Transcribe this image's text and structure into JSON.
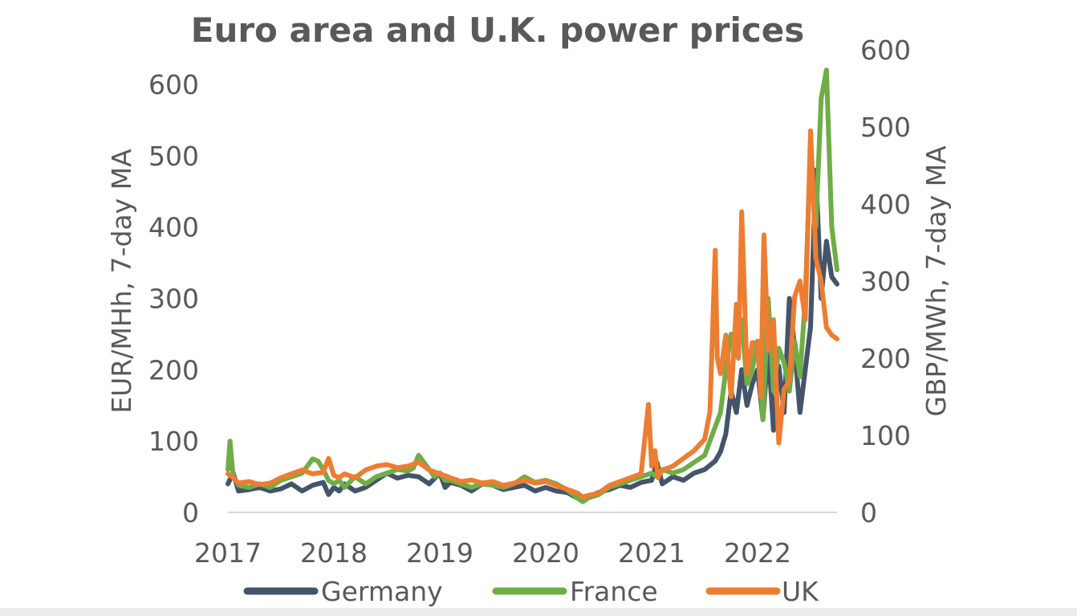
{
  "chart_data": {
    "type": "line",
    "title": "Euro area and U.K. power prices",
    "ylabel_left": "EUR/MHh, 7-day MA",
    "ylabel_right": "GBP/MWh, 7-day MA",
    "ylim_left": [
      0,
      600
    ],
    "ylim_right": [
      0,
      600
    ],
    "yticks_left": [
      "0",
      "100",
      "200",
      "300",
      "400",
      "500",
      "600"
    ],
    "yticks_right": [
      "0",
      "100",
      "200",
      "300",
      "400",
      "500",
      "600"
    ],
    "xlim": [
      2017.0,
      2022.75
    ],
    "xticks": [
      "2017",
      "2018",
      "2019",
      "2020",
      "2021",
      "2022"
    ],
    "grid": false,
    "legend_position": "bottom",
    "series": [
      {
        "name": "Germany",
        "color": "#44546a",
        "axis": "left",
        "x": [
          2017.0,
          2017.05,
          2017.1,
          2017.2,
          2017.3,
          2017.4,
          2017.5,
          2017.6,
          2017.7,
          2017.8,
          2017.9,
          2017.95,
          2018.0,
          2018.05,
          2018.1,
          2018.2,
          2018.3,
          2018.4,
          2018.5,
          2018.6,
          2018.7,
          2018.8,
          2018.9,
          2019.0,
          2019.05,
          2019.1,
          2019.2,
          2019.3,
          2019.4,
          2019.5,
          2019.6,
          2019.7,
          2019.8,
          2019.9,
          2020.0,
          2020.1,
          2020.2,
          2020.3,
          2020.35,
          2020.4,
          2020.5,
          2020.6,
          2020.7,
          2020.8,
          2020.9,
          2021.0,
          2021.05,
          2021.1,
          2021.2,
          2021.3,
          2021.4,
          2021.5,
          2021.6,
          2021.65,
          2021.7,
          2021.75,
          2021.8,
          2021.85,
          2021.9,
          2021.95,
          2022.0,
          2022.05,
          2022.1,
          2022.15,
          2022.2,
          2022.25,
          2022.3,
          2022.35,
          2022.4,
          2022.45,
          2022.5,
          2022.55,
          2022.6,
          2022.65,
          2022.7,
          2022.75
        ],
        "y": [
          40,
          55,
          30,
          32,
          35,
          30,
          33,
          40,
          30,
          38,
          42,
          25,
          35,
          30,
          40,
          30,
          35,
          45,
          55,
          48,
          52,
          50,
          40,
          55,
          35,
          42,
          38,
          30,
          40,
          38,
          32,
          35,
          38,
          30,
          35,
          30,
          28,
          20,
          18,
          22,
          28,
          32,
          38,
          35,
          42,
          45,
          70,
          40,
          50,
          45,
          55,
          60,
          72,
          85,
          110,
          170,
          140,
          200,
          150,
          180,
          200,
          130,
          230,
          115,
          205,
          140,
          300,
          230,
          140,
          200,
          260,
          480,
          300,
          380,
          330,
          320
        ]
      },
      {
        "name": "France",
        "color": "#70ad47",
        "axis": "left",
        "x": [
          2017.0,
          2017.02,
          2017.05,
          2017.1,
          2017.2,
          2017.3,
          2017.4,
          2017.5,
          2017.6,
          2017.7,
          2017.8,
          2017.85,
          2017.9,
          2017.95,
          2018.0,
          2018.05,
          2018.1,
          2018.2,
          2018.3,
          2018.4,
          2018.5,
          2018.6,
          2018.7,
          2018.75,
          2018.8,
          2018.85,
          2018.9,
          2018.95,
          2019.0,
          2019.05,
          2019.1,
          2019.2,
          2019.3,
          2019.4,
          2019.5,
          2019.6,
          2019.7,
          2019.8,
          2019.9,
          2020.0,
          2020.1,
          2020.2,
          2020.3,
          2020.35,
          2020.4,
          2020.5,
          2020.6,
          2020.7,
          2020.8,
          2020.9,
          2021.0,
          2021.05,
          2021.1,
          2021.2,
          2021.3,
          2021.4,
          2021.5,
          2021.6,
          2021.65,
          2021.7,
          2021.75,
          2021.8,
          2021.85,
          2021.9,
          2021.95,
          2022.0,
          2022.05,
          2022.1,
          2022.15,
          2022.2,
          2022.25,
          2022.3,
          2022.35,
          2022.4,
          2022.45,
          2022.5,
          2022.55,
          2022.6,
          2022.65,
          2022.7,
          2022.75
        ],
        "y": [
          60,
          100,
          50,
          38,
          35,
          40,
          35,
          45,
          50,
          55,
          75,
          72,
          60,
          45,
          40,
          45,
          35,
          50,
          40,
          50,
          55,
          60,
          58,
          62,
          80,
          70,
          60,
          50,
          55,
          45,
          45,
          40,
          35,
          40,
          38,
          35,
          40,
          50,
          42,
          45,
          40,
          32,
          20,
          15,
          20,
          25,
          35,
          40,
          45,
          50,
          55,
          50,
          60,
          55,
          60,
          70,
          80,
          120,
          140,
          200,
          250,
          220,
          270,
          180,
          200,
          240,
          130,
          300,
          170,
          230,
          210,
          170,
          240,
          190,
          300,
          510,
          400,
          580,
          620,
          400,
          340
        ]
      },
      {
        "name": "UK",
        "color": "#ed7d31",
        "axis": "right",
        "x": [
          2017.0,
          2017.05,
          2017.1,
          2017.2,
          2017.3,
          2017.4,
          2017.5,
          2017.6,
          2017.7,
          2017.8,
          2017.9,
          2017.95,
          2018.0,
          2018.05,
          2018.1,
          2018.2,
          2018.3,
          2018.4,
          2018.5,
          2018.6,
          2018.7,
          2018.8,
          2018.9,
          2019.0,
          2019.1,
          2019.2,
          2019.3,
          2019.4,
          2019.5,
          2019.6,
          2019.7,
          2019.8,
          2019.9,
          2020.0,
          2020.1,
          2020.2,
          2020.3,
          2020.35,
          2020.4,
          2020.5,
          2020.6,
          2020.7,
          2020.8,
          2020.9,
          2020.97,
          2021.0,
          2021.03,
          2021.06,
          2021.1,
          2021.2,
          2021.3,
          2021.4,
          2021.5,
          2021.55,
          2021.6,
          2021.62,
          2021.65,
          2021.7,
          2021.75,
          2021.8,
          2021.82,
          2021.85,
          2021.9,
          2021.95,
          2022.0,
          2022.03,
          2022.06,
          2022.1,
          2022.15,
          2022.2,
          2022.25,
          2022.3,
          2022.35,
          2022.4,
          2022.45,
          2022.5,
          2022.55,
          2022.6,
          2022.65,
          2022.7,
          2022.75
        ],
        "y": [
          50,
          45,
          38,
          40,
          36,
          38,
          45,
          50,
          55,
          50,
          52,
          70,
          48,
          45,
          50,
          45,
          55,
          60,
          62,
          58,
          60,
          65,
          55,
          50,
          45,
          40,
          42,
          38,
          40,
          35,
          38,
          42,
          38,
          40,
          35,
          30,
          25,
          20,
          22,
          25,
          35,
          40,
          45,
          50,
          140,
          60,
          80,
          45,
          55,
          60,
          70,
          80,
          95,
          130,
          340,
          200,
          180,
          230,
          150,
          270,
          200,
          390,
          180,
          220,
          220,
          150,
          360,
          210,
          250,
          90,
          160,
          170,
          280,
          300,
          250,
          495,
          330,
          300,
          240,
          230,
          225
        ]
      }
    ]
  }
}
